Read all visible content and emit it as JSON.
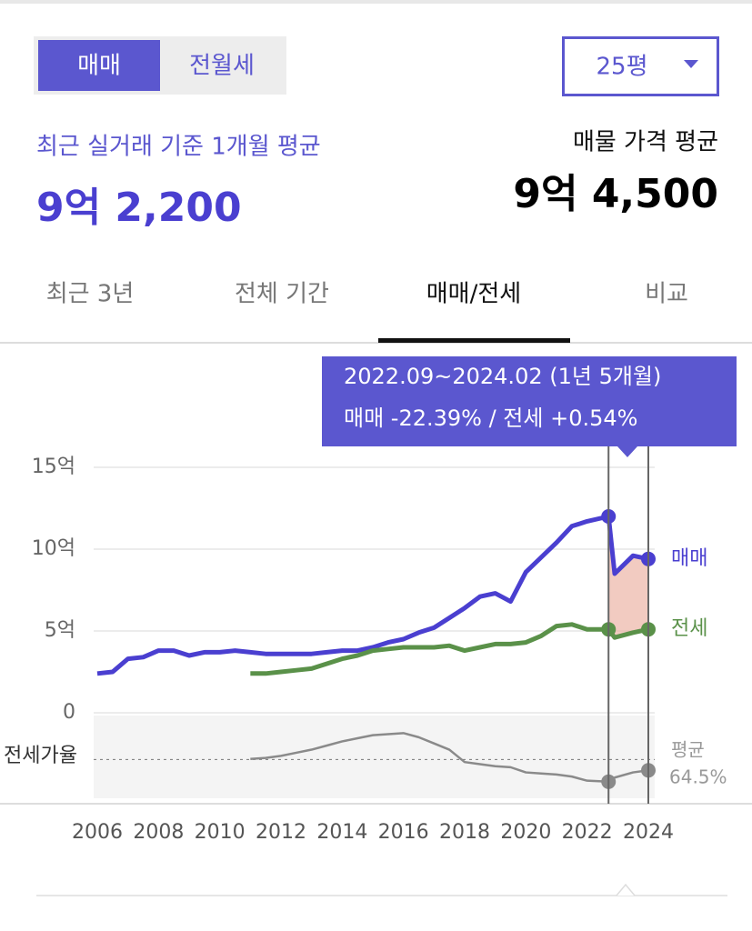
{
  "toggle": {
    "options": [
      "매매",
      "전월세"
    ],
    "active": 0
  },
  "size_select": "25평",
  "recent": {
    "label": "최근 실거래 기준 1개월 평균",
    "value": "9억 2,200"
  },
  "listing": {
    "label": "매물 가격 평균",
    "value": "9억 4,500"
  },
  "period_tabs": {
    "options": [
      "최근 3년",
      "전체 기간",
      "매매/전세",
      "비교"
    ],
    "active": 2
  },
  "chart_data": {
    "type": "line",
    "tooltip": [
      "2022.09~2024.02 (1년 5개월)",
      "매매 -22.39%  /  전세 +0.54%"
    ],
    "x": [
      2006,
      2006.5,
      2007,
      2007.5,
      2008,
      2008.5,
      2009,
      2009.5,
      2010,
      2010.5,
      2011,
      2011.5,
      2012,
      2012.5,
      2013,
      2013.5,
      2014,
      2014.5,
      2015,
      2015.5,
      2016,
      2016.5,
      2017,
      2017.5,
      2018,
      2018.5,
      2019,
      2019.5,
      2020,
      2020.5,
      2021,
      2021.5,
      2022,
      2022.7,
      2022.9,
      2023.5,
      2024
    ],
    "xlim": [
      2006,
      2024
    ],
    "xticks": [
      2006,
      2008,
      2010,
      2012,
      2014,
      2016,
      2018,
      2020,
      2022,
      2024
    ],
    "ylim": [
      0,
      15
    ],
    "yticks": [
      {
        "value": 0,
        "label": "0"
      },
      {
        "value": 5,
        "label": "5억"
      },
      {
        "value": 10,
        "label": "10억"
      },
      {
        "value": 15,
        "label": "15억"
      }
    ],
    "grid": true,
    "range": [
      2022.7,
      2024
    ],
    "series": [
      {
        "name": "매매",
        "color": "#4a3fd0",
        "values": [
          2.4,
          2.5,
          3.3,
          3.4,
          3.8,
          3.8,
          3.5,
          3.7,
          3.7,
          3.8,
          3.7,
          3.6,
          3.6,
          3.6,
          3.6,
          3.7,
          3.8,
          3.8,
          4.0,
          4.3,
          4.5,
          4.9,
          5.2,
          5.8,
          6.4,
          7.1,
          7.3,
          6.8,
          8.6,
          9.5,
          10.4,
          11.4,
          11.7,
          12.0,
          8.5,
          9.6,
          9.4
        ]
      },
      {
        "name": "전세",
        "color": "#5a9149",
        "values": [
          null,
          null,
          null,
          null,
          null,
          null,
          null,
          null,
          null,
          null,
          2.4,
          2.4,
          2.5,
          2.6,
          2.7,
          3.0,
          3.3,
          3.5,
          3.8,
          3.9,
          4.0,
          4.0,
          4.0,
          4.1,
          3.8,
          4.0,
          4.2,
          4.2,
          4.3,
          4.7,
          5.3,
          5.4,
          5.1,
          5.1,
          4.6,
          4.9,
          5.1
        ]
      },
      {
        "name": "전세가율",
        "color": "#8a8a8a",
        "axis": "y2",
        "values": [
          null,
          null,
          null,
          null,
          null,
          null,
          null,
          null,
          null,
          null,
          65,
          66,
          68,
          71,
          74,
          78,
          82,
          85,
          88,
          89,
          90,
          86,
          80,
          74,
          62,
          60,
          58,
          57,
          52,
          51,
          50,
          48,
          44,
          43,
          47,
          52,
          54
        ]
      }
    ],
    "y2lim": [
      27,
      107
    ],
    "average": {
      "label": "평균",
      "value": 64.5,
      "value_label": "64.5%"
    }
  }
}
